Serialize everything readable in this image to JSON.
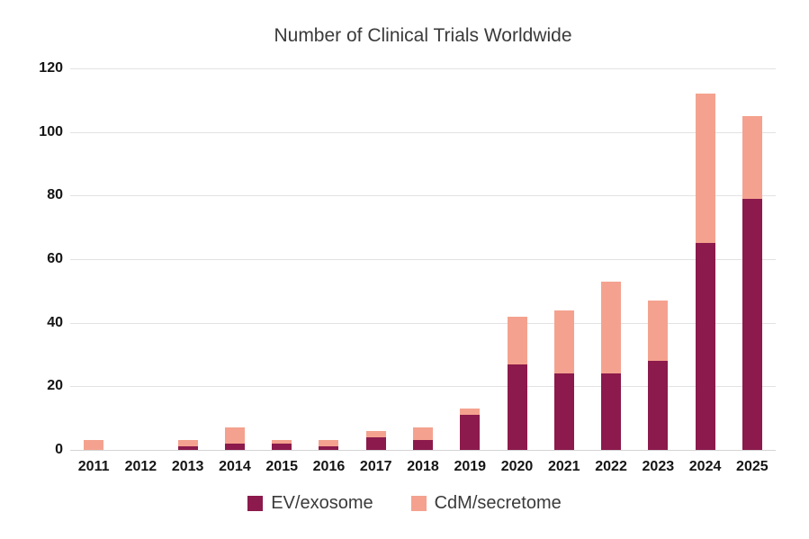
{
  "chart_data": {
    "type": "bar",
    "stacked": true,
    "title": "Number of Clinical Trials Worldwide",
    "categories": [
      "2011",
      "2012",
      "2013",
      "2014",
      "2015",
      "2016",
      "2017",
      "2018",
      "2019",
      "2020",
      "2021",
      "2022",
      "2023",
      "2024",
      "2025"
    ],
    "series": [
      {
        "name": "EV/exosome",
        "color": "#8c1a4c",
        "values": [
          0,
          0,
          1,
          2,
          2,
          1,
          4,
          3,
          11,
          27,
          24,
          24,
          28,
          65,
          79
        ]
      },
      {
        "name": "CdM/secretome",
        "color": "#f4a28f",
        "values": [
          3,
          0,
          2,
          5,
          1,
          2,
          2,
          4,
          2,
          15,
          20,
          29,
          19,
          47,
          26
        ]
      }
    ],
    "totals": [
      3,
      0,
      3,
      7,
      3,
      3,
      6,
      7,
      13,
      42,
      44,
      53,
      47,
      112,
      105
    ],
    "xlabel": "",
    "ylabel": "",
    "ylim": [
      0,
      120
    ],
    "yticks": [
      0,
      20,
      40,
      60,
      80,
      100,
      120
    ],
    "grid": true,
    "legend_position": "bottom",
    "colors": {
      "grid": "#e2e2e2",
      "axis_line": "#d4d4d4",
      "tick_text": "#151515",
      "title_text": "#3a3a3a"
    }
  }
}
